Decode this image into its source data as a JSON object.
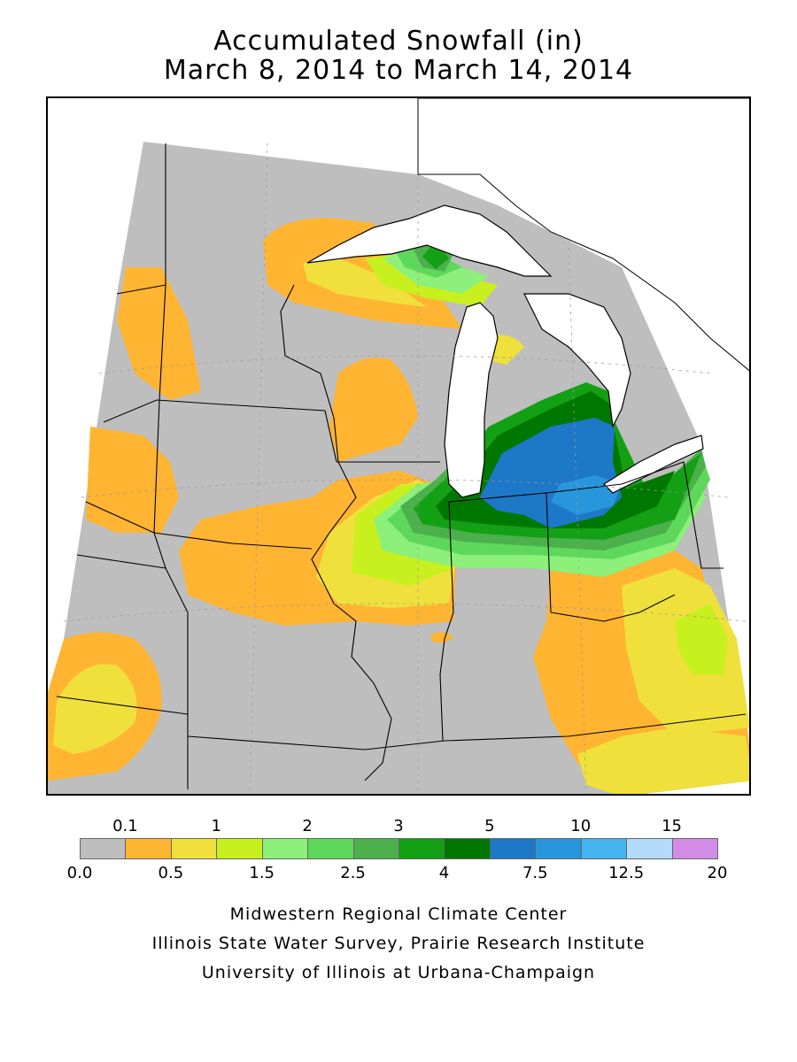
{
  "title": {
    "line1": "Accumulated Snowfall (in)",
    "line2": "March 8, 2014 to March 14, 2014"
  },
  "legend": {
    "top_labels": [
      "0.1",
      "1",
      "2",
      "3",
      "5",
      "10",
      "15"
    ],
    "bottom_labels": [
      "0.0",
      "0.5",
      "1.5",
      "2.5",
      "4",
      "7.5",
      "12.5",
      "20"
    ],
    "bins": [
      {
        "range": "0.0–0.1",
        "color": "#bebebe"
      },
      {
        "range": "0.1–0.5",
        "color": "#ffb432"
      },
      {
        "range": "0.5–1",
        "color": "#f0e03c"
      },
      {
        "range": "1–1.5",
        "color": "#c8f01e"
      },
      {
        "range": "1.5–2",
        "color": "#8cf07a"
      },
      {
        "range": "2–2.5",
        "color": "#5ed85a"
      },
      {
        "range": "2.5–3",
        "color": "#4cb04c"
      },
      {
        "range": "3–4",
        "color": "#14a014"
      },
      {
        "range": "4–5",
        "color": "#007800"
      },
      {
        "range": "5–7.5",
        "color": "#1e78c8"
      },
      {
        "range": "7.5–10",
        "color": "#2896dc"
      },
      {
        "range": "10–12.5",
        "color": "#46b4f0"
      },
      {
        "range": "12.5–15",
        "color": "#b4dcfa"
      },
      {
        "range": "15–20",
        "color": "#d28ce6"
      }
    ]
  },
  "credits": {
    "line1": "Midwestern Regional Climate Center",
    "line2": "Illinois State Water Survey, Prairie Research Institute",
    "line3": "University of Illinois at Urbana-Champaign"
  },
  "colors": {
    "land_none": "#bebebe",
    "water": "#ffffff",
    "boundary": "#000000"
  }
}
